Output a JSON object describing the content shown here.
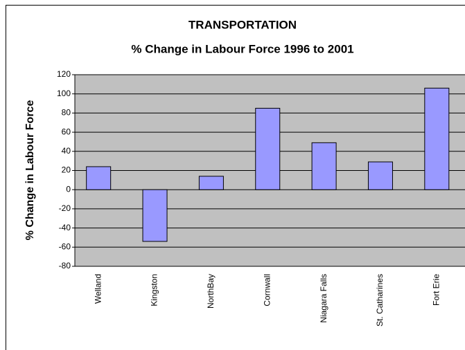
{
  "chart_data": {
    "type": "bar",
    "title": "TRANSPORTATION",
    "subtitle": "% Change in Labour Force 1996 to 2001",
    "y_label": "% Change in Labour Force",
    "categories": [
      "Welland",
      "Kingston",
      "NorthBay",
      "Cornwall",
      "Niagara Falls",
      "St. Catharines",
      "Fort Erie"
    ],
    "values": [
      24,
      -54,
      14,
      85,
      49,
      29,
      106
    ],
    "color": "#9999ff",
    "ylim": [
      -80,
      120
    ],
    "yticks": [
      -80,
      -60,
      -40,
      -20,
      0,
      20,
      40,
      60,
      80,
      100,
      120
    ],
    "grid": true
  }
}
